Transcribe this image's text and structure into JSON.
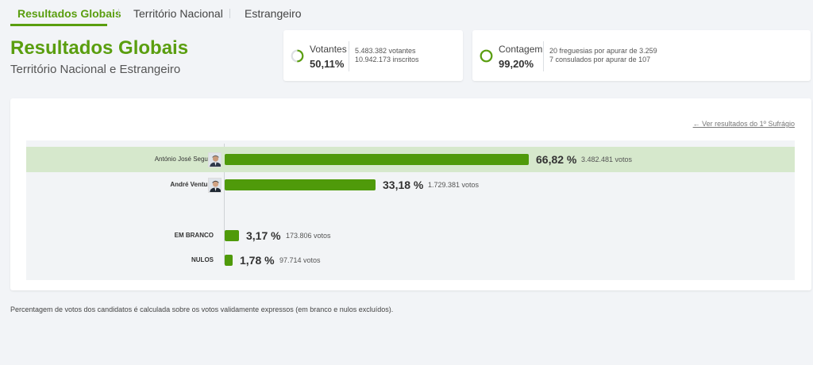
{
  "tabs": [
    {
      "label": "Resultados Globais"
    },
    {
      "label": "Território Nacional"
    },
    {
      "label": "Estrangeiro"
    }
  ],
  "header": {
    "title": "Resultados Globais",
    "subtitle": "Território Nacional e Estrangeiro"
  },
  "stats": {
    "votantes": {
      "label": "Votantes",
      "value": "50,11%",
      "progress": 0.5011,
      "line1": "5.483.382 votantes",
      "line2": "10.942.173 inscritos"
    },
    "contagem": {
      "label": "Contagem",
      "value": "99,20%",
      "progress": 0.992,
      "line1": "20 freguesias por apurar de 3.259",
      "line2": "7 consulados por apurar de 107"
    }
  },
  "links": {
    "first_round": "← Ver resultados do 1º Sufrágio"
  },
  "results": [
    {
      "name": "António José Seguro",
      "pct": "66,82 %",
      "votes": "3.482.481 votos",
      "share": 0.6682
    },
    {
      "name": "André Ventura",
      "pct": "33,18 %",
      "votes": "1.729.381 votos",
      "share": 0.3318
    },
    {
      "name": "EM BRANCO",
      "pct": "3,17 %",
      "votes": "173.806 votos",
      "share": 0.0317
    },
    {
      "name": "NULOS",
      "pct": "1,78 %",
      "votes": "97.714 votos",
      "share": 0.0178
    }
  ],
  "colors": {
    "accent": "#5a9e0f",
    "bar": "#4f9a0a",
    "winner_highlight": "#d6e8cc",
    "ring_track": "#dcdfe3"
  },
  "footnote": "Percentagem de votos dos candidatos é calculada sobre os votos validamente expressos (em branco e nulos excluídos)."
}
